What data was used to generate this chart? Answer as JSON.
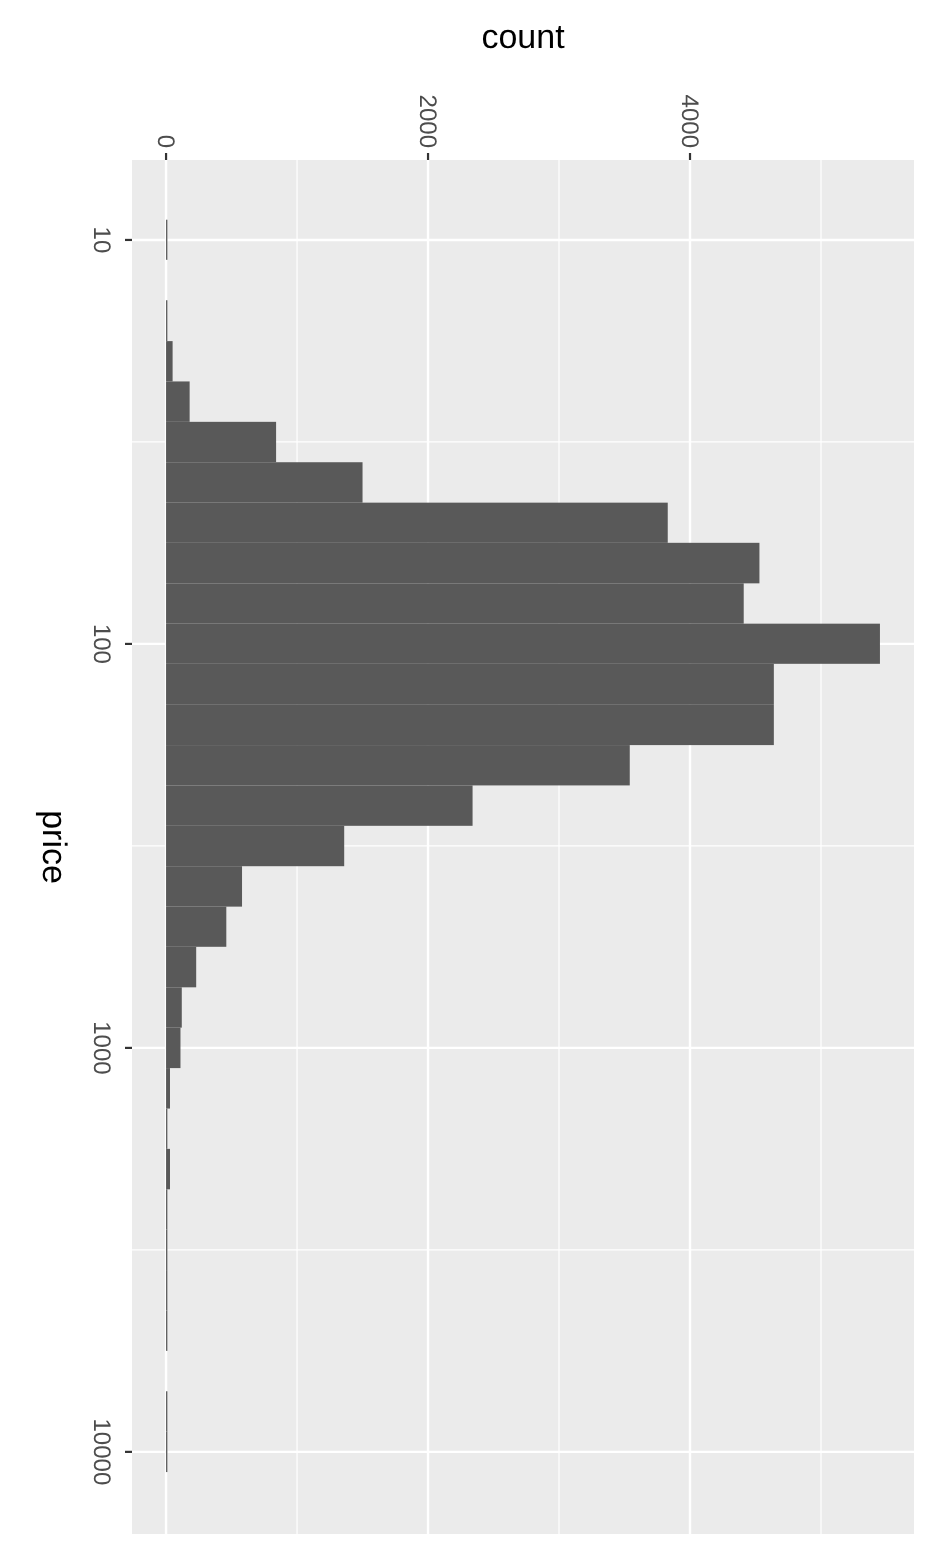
{
  "chart_data": {
    "type": "histogram",
    "orientation": "horizontal",
    "xlabel": "count",
    "ylabel": "price",
    "log": "y",
    "grid": true,
    "color": "#595959",
    "bins": [
      8.91,
      11.2,
      14.1,
      17.8,
      22.4,
      28.2,
      35.5,
      44.7,
      56.2,
      70.8,
      89.1,
      112,
      141,
      178,
      224,
      282,
      355,
      447,
      562,
      708,
      891,
      1122,
      1413,
      1778,
      2239,
      2818,
      3548,
      4467,
      5623,
      7079,
      8913,
      11220
    ],
    "values": [
      10,
      0,
      10,
      50,
      180,
      840,
      1500,
      3830,
      4530,
      4410,
      5450,
      4640,
      4640,
      3540,
      2340,
      1360,
      580,
      460,
      230,
      120,
      110,
      30,
      10,
      30,
      10,
      10,
      10,
      10,
      0,
      10,
      10
    ],
    "xlim": [
      -260,
      5710
    ],
    "xticks": [
      0,
      2000,
      4000
    ],
    "ylim": [
      15970,
      6.34
    ],
    "yticks": [
      10,
      100,
      1000,
      10000
    ]
  }
}
